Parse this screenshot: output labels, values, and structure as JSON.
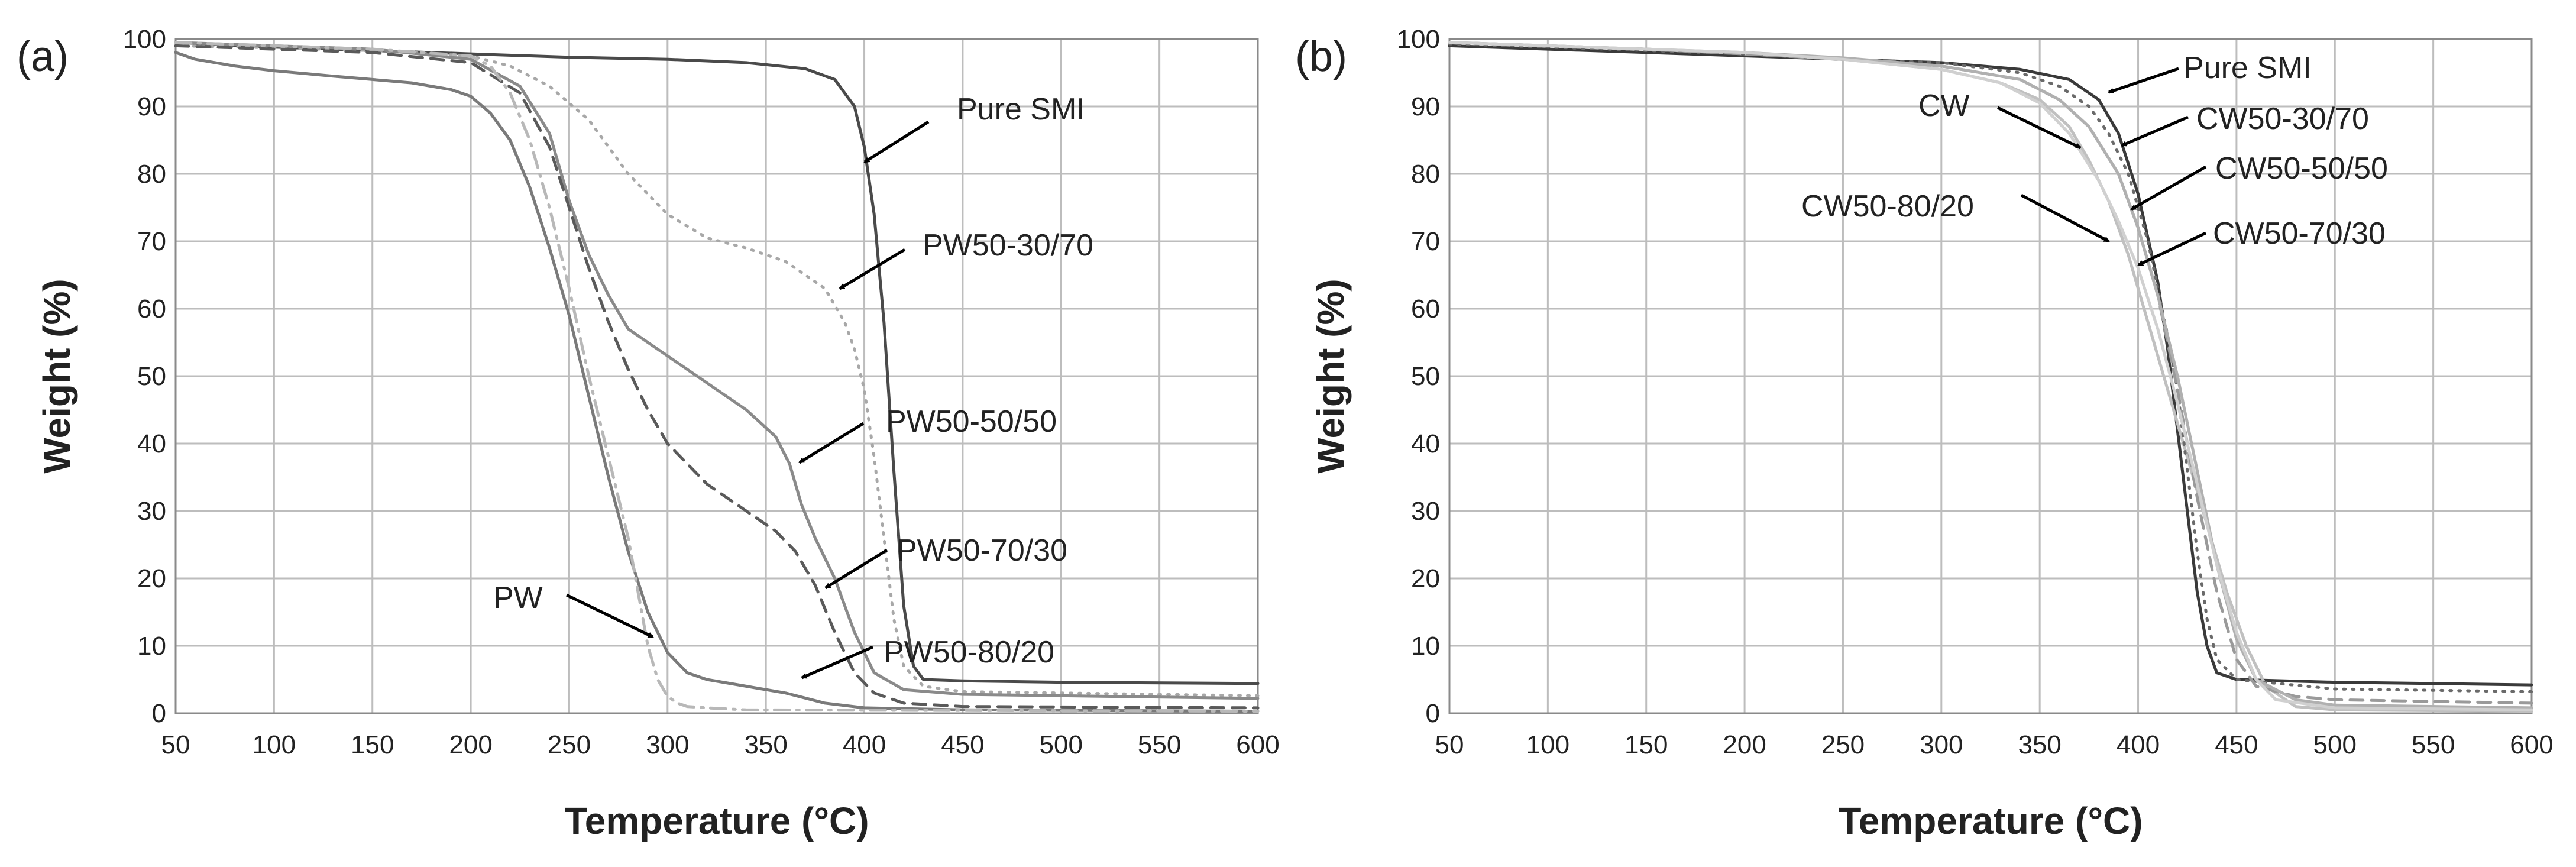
{
  "chart_data": [
    {
      "type": "line",
      "panel_label": "(a)",
      "xlabel": "Temperature (°C)",
      "ylabel": "Weight (%)",
      "xlim": [
        50,
        600
      ],
      "ylim": [
        0,
        100
      ],
      "xticks": [
        50,
        100,
        150,
        200,
        250,
        300,
        350,
        400,
        450,
        500,
        550,
        600
      ],
      "yticks": [
        0,
        10,
        20,
        30,
        40,
        50,
        60,
        70,
        80,
        90,
        100
      ],
      "grid": true,
      "series": [
        {
          "name": "Pure SMI",
          "color": "#4a4a4a",
          "dash": "solid",
          "x": [
            50,
            100,
            150,
            200,
            250,
            300,
            340,
            370,
            385,
            395,
            400,
            405,
            410,
            415,
            420,
            425,
            430,
            450,
            500,
            600
          ],
          "y": [
            99.5,
            98.8,
            98.3,
            97.8,
            97.3,
            97,
            96.5,
            95.6,
            94,
            90,
            84,
            74,
            58,
            36,
            16,
            7,
            5,
            4.8,
            4.6,
            4.4
          ]
        },
        {
          "name": "PW50-30/70",
          "color": "#a8a8a8",
          "dash": "dot",
          "x": [
            50,
            100,
            150,
            200,
            220,
            240,
            260,
            280,
            300,
            320,
            340,
            360,
            380,
            390,
            395,
            400,
            405,
            410,
            415,
            420,
            430,
            450,
            600
          ],
          "y": [
            99,
            98.7,
            98.3,
            97.5,
            96,
            93,
            88,
            80,
            74,
            70.5,
            69,
            67,
            63,
            58,
            54,
            48,
            38,
            26,
            14,
            7,
            4,
            3.2,
            2.6
          ]
        },
        {
          "name": "PW50-50/50",
          "color": "#8a8a8a",
          "dash": "solid",
          "x": [
            50,
            100,
            150,
            200,
            225,
            240,
            250,
            260,
            270,
            280,
            290,
            300,
            320,
            340,
            355,
            362,
            368,
            375,
            385,
            395,
            405,
            420,
            450,
            600
          ],
          "y": [
            99.5,
            99,
            98.5,
            97,
            93,
            86,
            76,
            68,
            62,
            57,
            55,
            53,
            49,
            45,
            41,
            37,
            31,
            26,
            20,
            12,
            6,
            3.5,
            2.8,
            2.2
          ]
        },
        {
          "name": "PW50-70/30",
          "color": "#5a5a5a",
          "dash": "dash",
          "x": [
            50,
            100,
            150,
            200,
            225,
            240,
            250,
            260,
            270,
            280,
            290,
            300,
            320,
            340,
            355,
            365,
            375,
            385,
            395,
            405,
            420,
            450,
            600
          ],
          "y": [
            99,
            98.5,
            98,
            96.5,
            92,
            84,
            75,
            66,
            58,
            51,
            45,
            40,
            34,
            30,
            27,
            24,
            19,
            12,
            6,
            3,
            1.5,
            1,
            0.8
          ]
        },
        {
          "name": "PW50-80/20",
          "color": "#7a7a7a",
          "dash": "solid",
          "x": [
            50,
            60,
            80,
            100,
            130,
            150,
            170,
            190,
            200,
            210,
            220,
            230,
            240,
            250,
            260,
            270,
            280,
            290,
            300,
            310,
            320,
            340,
            360,
            380,
            400,
            450,
            600
          ],
          "y": [
            98,
            97,
            96,
            95.3,
            94.5,
            94,
            93.5,
            92.5,
            91.5,
            89,
            85,
            78,
            69,
            59,
            47,
            35,
            24,
            15,
            9,
            6,
            5,
            4,
            3,
            1.5,
            0.8,
            0.5,
            0.3
          ]
        },
        {
          "name": "PW",
          "color": "#b8b8b8",
          "dash": "dashdot",
          "x": [
            50,
            100,
            150,
            200,
            210,
            220,
            230,
            240,
            250,
            260,
            270,
            280,
            285,
            290,
            295,
            300,
            305,
            310,
            320,
            340,
            600
          ],
          "y": [
            99.5,
            99,
            98.5,
            97.5,
            96,
            92,
            85,
            75,
            63,
            50,
            38,
            26,
            18,
            10,
            5,
            2.5,
            1.5,
            1,
            0.8,
            0.5,
            0.3
          ]
        }
      ],
      "annotations": [
        {
          "text": "Pure SMI"
        },
        {
          "text": "PW50-30/70"
        },
        {
          "text": "PW50-50/50"
        },
        {
          "text": "PW50-70/30"
        },
        {
          "text": "PW"
        },
        {
          "text": "PW50-80/20"
        }
      ]
    },
    {
      "type": "line",
      "panel_label": "(b)",
      "xlabel": "Temperature (°C)",
      "ylabel": "Weight (%)",
      "xlim": [
        50,
        600
      ],
      "ylim": [
        0,
        100
      ],
      "xticks": [
        50,
        100,
        150,
        200,
        250,
        300,
        350,
        400,
        450,
        500,
        550,
        600
      ],
      "yticks": [
        0,
        10,
        20,
        30,
        40,
        50,
        60,
        70,
        80,
        90,
        100
      ],
      "grid": true,
      "series": [
        {
          "name": "Pure SMI",
          "color": "#3a3a3a",
          "dash": "solid",
          "x": [
            50,
            100,
            150,
            200,
            250,
            300,
            340,
            365,
            380,
            390,
            400,
            410,
            415,
            420,
            425,
            430,
            435,
            440,
            450,
            500,
            600
          ],
          "y": [
            99,
            98.5,
            98,
            97.5,
            97,
            96.5,
            95.5,
            94,
            91,
            86,
            77,
            64,
            54,
            42,
            30,
            18,
            10,
            6,
            5,
            4.6,
            4.2
          ]
        },
        {
          "name": "CW",
          "color": "#c0c0c0",
          "dash": "solid",
          "x": [
            50,
            100,
            150,
            200,
            250,
            300,
            330,
            350,
            365,
            375,
            385,
            395,
            405,
            415,
            425,
            435,
            445,
            455,
            465,
            480,
            500,
            600
          ],
          "y": [
            99.5,
            99,
            98.5,
            97.8,
            97,
            95.5,
            93.5,
            91,
            87,
            82,
            76,
            68,
            58,
            48,
            38,
            28,
            18,
            10,
            4,
            1,
            0.5,
            0.3
          ]
        },
        {
          "name": "CW50-30/70",
          "color": "#6a6a6a",
          "dash": "dot",
          "x": [
            50,
            100,
            150,
            200,
            250,
            300,
            340,
            360,
            375,
            385,
            395,
            405,
            415,
            420,
            425,
            430,
            435,
            440,
            450,
            500,
            600
          ],
          "y": [
            99.3,
            98.8,
            98.3,
            97.8,
            97,
            96.5,
            95,
            93,
            90,
            86,
            80,
            70,
            56,
            48,
            36,
            24,
            14,
            8,
            5,
            3.6,
            3.2
          ]
        },
        {
          "name": "CW50-50/50",
          "color": "#9a9a9a",
          "dash": "dash",
          "x": [
            50,
            100,
            150,
            200,
            250,
            300,
            340,
            360,
            375,
            390,
            400,
            410,
            420,
            430,
            440,
            450,
            460,
            480,
            500,
            600
          ],
          "y": [
            99.5,
            99,
            98.5,
            97.8,
            97,
            96,
            94,
            91,
            87,
            80,
            72,
            62,
            48,
            32,
            18,
            8,
            4,
            2.5,
            2,
            1.5
          ]
        },
        {
          "name": "CW50-70/30",
          "color": "#b0b0b0",
          "dash": "solid",
          "x": [
            50,
            100,
            150,
            200,
            250,
            300,
            340,
            360,
            375,
            390,
            400,
            410,
            420,
            430,
            440,
            450,
            460,
            480,
            500,
            600
          ],
          "y": [
            99.5,
            99,
            98.5,
            98,
            97.2,
            96,
            94,
            91,
            87,
            80,
            72,
            62,
            50,
            36,
            22,
            11,
            5,
            2,
            1.2,
            0.8
          ]
        },
        {
          "name": "CW50-80/20",
          "color": "#d0d0d0",
          "dash": "solid",
          "x": [
            50,
            100,
            150,
            200,
            250,
            300,
            330,
            350,
            365,
            380,
            390,
            400,
            410,
            420,
            430,
            440,
            450,
            460,
            470,
            500,
            600
          ],
          "y": [
            99.5,
            99,
            98.5,
            98,
            97,
            95.5,
            93.5,
            90.5,
            86,
            79,
            73,
            66,
            57,
            46,
            34,
            22,
            12,
            5,
            2,
            0.8,
            0.5
          ]
        }
      ],
      "annotations": [
        {
          "text": "Pure SMI"
        },
        {
          "text": "CW"
        },
        {
          "text": "CW50-30/70"
        },
        {
          "text": "CW50-50/50"
        },
        {
          "text": "CW50-80/20"
        },
        {
          "text": "CW50-70/30"
        }
      ]
    }
  ]
}
